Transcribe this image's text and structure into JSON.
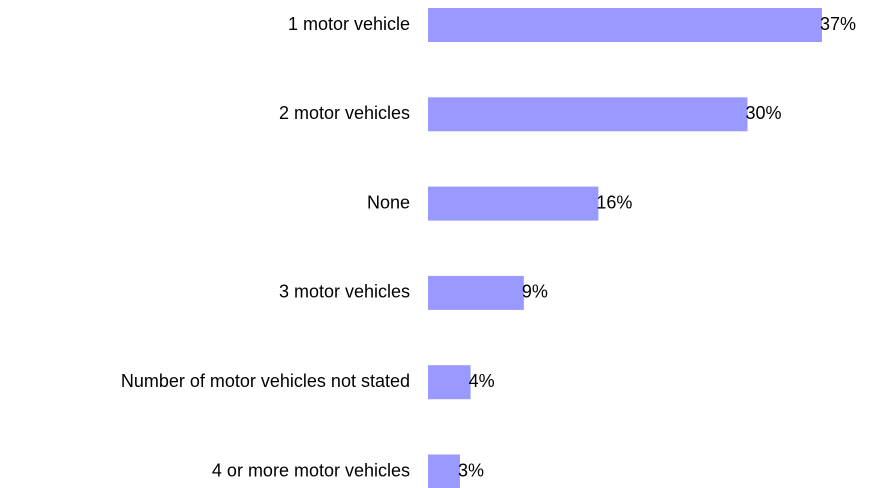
{
  "chart_data": {
    "type": "barh",
    "categories": [
      "1 motor vehicle",
      "2 motor vehicles",
      "None",
      "3 motor vehicles",
      "Number of motor vehicles not stated",
      "4 or more motor vehicles"
    ],
    "values": [
      37,
      30,
      16,
      9,
      4,
      3
    ],
    "value_labels": [
      "37%",
      "30%",
      "16%",
      "9%",
      "4%",
      "3%"
    ],
    "color": "#9999ff"
  }
}
